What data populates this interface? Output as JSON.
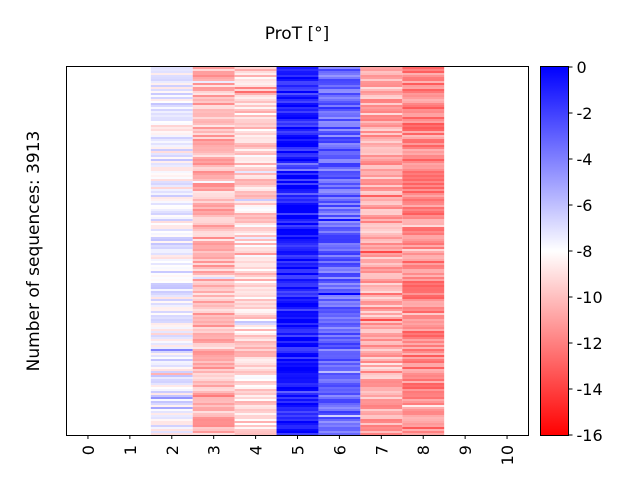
{
  "chart_data": {
    "type": "heatmap",
    "title": "ProT [°]",
    "xlabel": "",
    "ylabel": "Number of sequences: 3913",
    "x_categories": [
      "0",
      "1",
      "2",
      "3",
      "4",
      "5",
      "6",
      "7",
      "8",
      "9",
      "10"
    ],
    "colorbar": {
      "min": -16,
      "max": 0,
      "ticks": [
        0,
        -2,
        -4,
        -6,
        -8,
        -10,
        -12,
        -14,
        -16
      ],
      "tick_labels": [
        "0",
        "-2",
        "-4",
        "-6",
        "-8",
        "-10",
        "-12",
        "-14",
        "-16"
      ],
      "colormap": [
        "#ff0000",
        "#ffffff",
        "#0000ff"
      ],
      "center": -8
    },
    "columns": [
      {
        "position": "0",
        "has_data": false
      },
      {
        "position": "1",
        "has_data": false
      },
      {
        "position": "2",
        "has_data": true,
        "typical_value": -7.6
      },
      {
        "position": "3",
        "has_data": true,
        "typical_value": -10.2
      },
      {
        "position": "4",
        "has_data": true,
        "typical_value": -9.2
      },
      {
        "position": "5",
        "has_data": true,
        "typical_value": -0.8
      },
      {
        "position": "6",
        "has_data": true,
        "typical_value": -3.2
      },
      {
        "position": "7",
        "has_data": true,
        "typical_value": -10.6
      },
      {
        "position": "8",
        "has_data": true,
        "typical_value": -11.8
      },
      {
        "position": "9",
        "has_data": false
      },
      {
        "position": "10",
        "has_data": false
      }
    ],
    "grid": false
  }
}
